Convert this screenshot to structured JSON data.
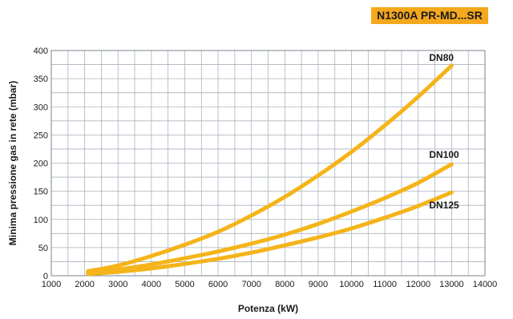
{
  "badge": {
    "text": "N1300A PR-MD...SR",
    "color": "#f4a81d"
  },
  "chart_data": {
    "type": "line",
    "xlabel": "Potenza (kW)",
    "ylabel": "Minima pressione gas in rete (mbar)",
    "xlim": [
      1000,
      14000
    ],
    "ylim": [
      0,
      400
    ],
    "x_ticks": [
      1000,
      2000,
      3000,
      4000,
      5000,
      6000,
      7000,
      8000,
      9000,
      10000,
      11000,
      12000,
      13000,
      14000
    ],
    "y_ticks": [
      0,
      50,
      100,
      150,
      200,
      250,
      300,
      350,
      400
    ],
    "x_minor_step": 500,
    "y_minor_step": 25,
    "grid": true,
    "line_color": "#f4b41a",
    "series": [
      {
        "name": "DN80",
        "x": [
          2100,
          3000,
          4000,
          5000,
          6000,
          7000,
          8000,
          9000,
          10000,
          11000,
          12000,
          13000
        ],
        "values": [
          8,
          18,
          35,
          55,
          78,
          107,
          140,
          178,
          220,
          267,
          318,
          373
        ]
      },
      {
        "name": "DN100",
        "x": [
          2100,
          3000,
          4000,
          5000,
          6000,
          7000,
          8000,
          9000,
          10000,
          11000,
          12000,
          13000
        ],
        "values": [
          5,
          11,
          20,
          31,
          43,
          57,
          73,
          92,
          114,
          138,
          165,
          198
        ]
      },
      {
        "name": "DN125",
        "x": [
          2100,
          3000,
          4000,
          5000,
          6000,
          7000,
          8000,
          9000,
          10000,
          11000,
          12000,
          13000
        ],
        "values": [
          3,
          7,
          13,
          21,
          30,
          41,
          54,
          68,
          84,
          103,
          124,
          148
        ]
      }
    ]
  }
}
